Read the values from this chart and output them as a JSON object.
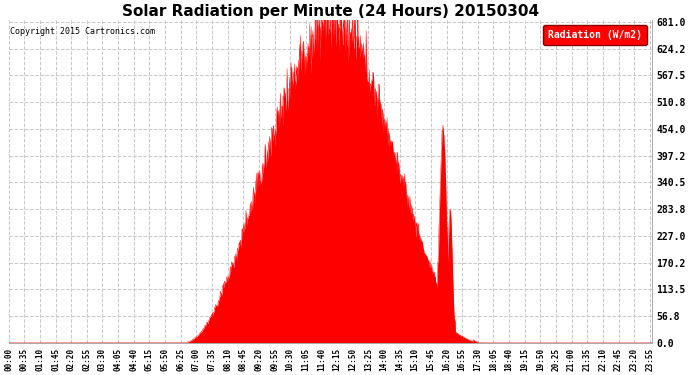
{
  "title": "Solar Radiation per Minute (24 Hours) 20150304",
  "title_fontsize": 11,
  "copyright_text": "Copyright 2015 Cartronics.com",
  "legend_label": "Radiation (W/m2)",
  "yticks": [
    0.0,
    56.8,
    113.5,
    170.2,
    227.0,
    283.8,
    340.5,
    397.2,
    454.0,
    510.8,
    567.5,
    624.2,
    681.0
  ],
  "ymax": 681.0,
  "ymin": 0.0,
  "fill_color": "#ff0000",
  "line_color": "#ff0000",
  "background_color": "#ffffff",
  "grid_color": "#c8c8c8",
  "dashed_zero_color": "#ff0000",
  "x_tick_interval_minutes": 35,
  "total_minutes": 1440,
  "sunrise_min": 390,
  "sunset_min": 1065,
  "peak_min": 720,
  "peak_val": 681.0,
  "secondary_spike_min": 975,
  "secondary_spike_val": 454.0
}
